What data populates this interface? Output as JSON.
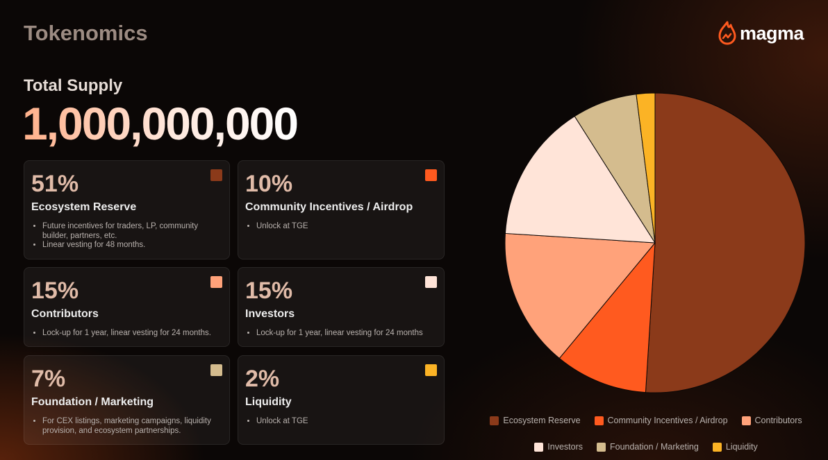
{
  "header": {
    "title": "Tokenomics",
    "brand": "magma"
  },
  "supply": {
    "label": "Total Supply",
    "value": "1,000,000,000"
  },
  "cards": [
    {
      "bullets": [
        "Future incentives for traders, LP, community builder, partners, etc.",
        "Linear vesting for 48 months."
      ]
    },
    {
      "bullets": [
        "Unlock at TGE"
      ]
    },
    {
      "bullets": [
        "Lock-up for 1 year, linear vesting for 24 months."
      ]
    },
    {
      "bullets": [
        "Lock-up for 1 year, linear vesting for 24 months"
      ]
    },
    {
      "bullets": [
        "For CEX listings, marketing campaigns, liquidity provision, and ecosystem partnerships."
      ]
    },
    {
      "bullets": [
        "Unlock at TGE"
      ]
    }
  ],
  "chart_data": {
    "type": "pie",
    "categories": [
      "Ecosystem Reserve",
      "Community Incentives / Airdrop",
      "Contributors",
      "Investors",
      "Foundation / Marketing",
      "Liquidity"
    ],
    "values": [
      51,
      10,
      15,
      15,
      7,
      2
    ],
    "value_labels": [
      "51%",
      "10%",
      "15%",
      "15%",
      "7%",
      "2%"
    ],
    "colors": [
      "#8b3a1a",
      "#ff5a1f",
      "#ffa27a",
      "#ffe4d8",
      "#d4bc8e",
      "#fbb325"
    ],
    "legend": true
  }
}
